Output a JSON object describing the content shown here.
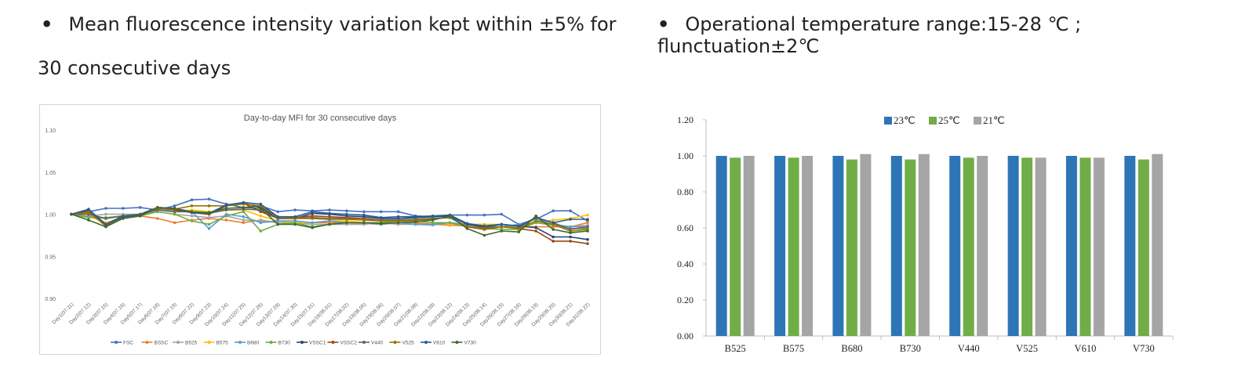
{
  "bullets": [
    {
      "text_line1": "Mean fluorescence intensity variation kept within ±5% for",
      "text_line2": "30 consecutive days"
    },
    {
      "text_line1": "Operational temperature range:15-28 ℃ ; flunctuation±2℃"
    }
  ],
  "chart_data": [
    {
      "type": "line",
      "title": "Day-to-day MFI for 30 consecutive days",
      "xlabel": "",
      "ylabel": "",
      "ylim": [
        0.9,
        1.1
      ],
      "yticks": [
        "0.90",
        "0.95",
        "1.00",
        "1.05",
        "1.10"
      ],
      "grid": false,
      "legend_position": "bottom",
      "categories": [
        "Day1(07.11)",
        "Day2(07.12)",
        "Day3(07.15)",
        "Day4(07.16)",
        "Day5(07.17)",
        "Day6(07.18)",
        "Day7(07.19)",
        "Day8(07.22)",
        "Day9(07.23)",
        "Day10(07.24)",
        "Day11(07.25)",
        "Day12(07.26)",
        "Day13(07.29)",
        "Day14(07.30)",
        "Day15(07.31)",
        "Day16(08.01)",
        "Day17(08.02)",
        "Day18(08.05)",
        "Day19(08.06)",
        "Day20(08.07)",
        "Day21(08.08)",
        "Day22(08.09)",
        "Day23(08.12)",
        "Day24(08.13)",
        "Day25(08.14)",
        "Day26(08.15)",
        "Day27(08.16)",
        "Day28(08.19)",
        "Day29(08.20)",
        "Day30(08.21)",
        "Day31(08.22)"
      ],
      "series": [
        {
          "name": "FSC",
          "color": "#4472C4",
          "values": [
            1.0,
            1.003,
            1.007,
            1.007,
            1.008,
            1.005,
            1.01,
            1.017,
            1.018,
            1.012,
            1.008,
            1.01,
            1.003,
            1.005,
            1.004,
            1.005,
            1.004,
            1.003,
            1.003,
            1.003,
            0.998,
            0.997,
            0.999,
            0.999,
            0.999,
            1.0,
            0.988,
            0.994,
            1.004,
            1.004,
            0.992
          ]
        },
        {
          "name": "BSSC",
          "color": "#ED7D31",
          "values": [
            1.0,
            0.998,
            0.99,
            0.995,
            0.998,
            0.995,
            0.99,
            0.993,
            0.995,
            0.993,
            0.99,
            0.993,
            0.99,
            0.99,
            0.99,
            0.99,
            0.99,
            0.989,
            0.988,
            0.99,
            0.99,
            0.988,
            0.987,
            0.986,
            0.986,
            0.985,
            0.985,
            0.985,
            0.985,
            0.985,
            0.99
          ]
        },
        {
          "name": "B525",
          "color": "#A5A5A5",
          "values": [
            1.0,
            0.998,
            1.0,
            1.0,
            1.0,
            1.003,
            1.0,
            0.998,
            0.996,
            0.998,
            0.993,
            0.992,
            0.99,
            0.99,
            0.988,
            0.988,
            0.988,
            0.988,
            0.99,
            0.988,
            0.988,
            0.987,
            0.99,
            0.987,
            0.985,
            0.985,
            0.985,
            0.99,
            0.987,
            0.985,
            0.987
          ]
        },
        {
          "name": "B575",
          "color": "#FFC000",
          "values": [
            1.0,
            0.998,
            0.99,
            0.995,
            1.0,
            1.005,
            1.003,
            1.005,
            1.003,
            1.005,
            1.005,
            0.998,
            0.992,
            0.99,
            0.99,
            0.992,
            0.992,
            0.99,
            0.99,
            0.992,
            0.992,
            0.99,
            0.988,
            0.988,
            0.988,
            0.988,
            0.985,
            0.99,
            0.993,
            0.995,
            0.999
          ]
        },
        {
          "name": "B680",
          "color": "#5B9BD5",
          "values": [
            1.0,
            0.997,
            0.995,
            0.998,
            1.0,
            1.005,
            1.005,
            1.003,
            0.983,
            1.0,
            0.997,
            0.99,
            0.992,
            0.992,
            0.99,
            0.992,
            0.99,
            0.99,
            0.988,
            0.99,
            0.988,
            0.988,
            0.99,
            0.988,
            0.986,
            0.985,
            0.988,
            0.994,
            0.988,
            0.985,
            0.985
          ]
        },
        {
          "name": "B730",
          "color": "#70AD47",
          "values": [
            1.0,
            0.996,
            0.996,
            0.998,
            0.998,
            1.003,
            1.0,
            0.992,
            0.988,
            0.998,
            1.003,
            0.98,
            0.988,
            0.99,
            0.985,
            0.988,
            0.99,
            0.99,
            0.99,
            0.992,
            0.992,
            0.99,
            0.99,
            0.985,
            0.983,
            0.982,
            0.982,
            0.99,
            0.987,
            0.983,
            0.983
          ]
        },
        {
          "name": "VSSC1",
          "color": "#264478",
          "values": [
            1.0,
            1.005,
            0.988,
            0.998,
            1.0,
            1.008,
            1.007,
            1.002,
            1.0,
            1.01,
            1.013,
            1.008,
            0.995,
            0.995,
            1.001,
            1.0,
            0.998,
            0.997,
            0.995,
            0.995,
            0.996,
            0.997,
            0.998,
            0.988,
            0.985,
            0.988,
            0.986,
            0.984,
            0.973,
            0.973,
            0.97
          ]
        },
        {
          "name": "VSSC2",
          "color": "#9E480E",
          "values": [
            1.0,
            1.003,
            0.986,
            0.997,
            0.998,
            1.008,
            1.005,
            1.002,
            1.0,
            1.01,
            1.013,
            1.003,
            0.995,
            0.996,
            0.998,
            0.997,
            0.996,
            0.995,
            0.993,
            0.993,
            0.994,
            0.995,
            0.996,
            0.985,
            0.982,
            0.985,
            0.983,
            0.98,
            0.968,
            0.968,
            0.965
          ]
        },
        {
          "name": "V440",
          "color": "#636363",
          "values": [
            1.0,
            1.0,
            0.995,
            0.998,
            1.0,
            1.005,
            1.003,
            1.003,
            1.001,
            1.005,
            1.006,
            1.005,
            0.995,
            0.995,
            0.996,
            0.995,
            0.995,
            0.993,
            0.993,
            0.993,
            0.994,
            0.995,
            0.996,
            0.985,
            0.984,
            0.985,
            0.984,
            0.996,
            0.99,
            0.982,
            0.985
          ]
        },
        {
          "name": "V525",
          "color": "#997300",
          "values": [
            1.0,
            1.002,
            0.987,
            0.996,
            0.998,
            1.007,
            1.006,
            1.01,
            1.01,
            1.01,
            1.012,
            1.01,
            0.996,
            0.995,
            0.995,
            0.994,
            0.994,
            0.993,
            0.992,
            0.992,
            0.993,
            0.994,
            0.997,
            0.985,
            0.983,
            0.985,
            0.983,
            0.992,
            0.988,
            0.98,
            0.982
          ]
        },
        {
          "name": "V610",
          "color": "#255E91",
          "values": [
            1.0,
            1.006,
            0.988,
            0.997,
            0.999,
            1.008,
            1.007,
            1.002,
            1.001,
            1.011,
            1.014,
            1.012,
            0.997,
            0.997,
            1.003,
            1.001,
            1.0,
            0.999,
            0.996,
            0.997,
            0.997,
            0.998,
            0.999,
            0.989,
            0.986,
            0.988,
            0.986,
            0.996,
            0.99,
            0.994,
            0.994
          ]
        },
        {
          "name": "V730",
          "color": "#43682B",
          "values": [
            1.0,
            0.993,
            0.985,
            0.995,
            0.998,
            1.008,
            1.007,
            1.003,
            1.002,
            1.007,
            1.008,
            1.007,
            0.988,
            0.988,
            0.984,
            0.988,
            0.99,
            0.99,
            0.989,
            0.99,
            0.991,
            0.993,
            0.998,
            0.983,
            0.975,
            0.98,
            0.979,
            0.998,
            0.982,
            0.978,
            0.98
          ]
        }
      ]
    },
    {
      "type": "bar",
      "title": "",
      "xlabel": "",
      "ylabel": "",
      "ylim": [
        0.0,
        1.2
      ],
      "yticks": [
        "0.00",
        "0.20",
        "0.40",
        "0.60",
        "0.80",
        "1.00",
        "1.20"
      ],
      "grid": false,
      "legend_position": "top",
      "categories": [
        "B525",
        "B575",
        "B680",
        "B730",
        "V440",
        "V525",
        "V610",
        "V730"
      ],
      "series": [
        {
          "name": "23℃",
          "color": "#2E75B6",
          "values": [
            1.0,
            1.0,
            1.0,
            1.0,
            1.0,
            1.0,
            1.0,
            1.0
          ]
        },
        {
          "name": "25℃",
          "color": "#70AD47",
          "values": [
            0.99,
            0.99,
            0.98,
            0.98,
            0.99,
            0.99,
            0.99,
            0.98
          ]
        },
        {
          "name": "21℃",
          "color": "#A5A5A5",
          "values": [
            1.0,
            1.0,
            1.01,
            1.01,
            1.0,
            0.99,
            0.99,
            1.01
          ]
        }
      ]
    }
  ]
}
